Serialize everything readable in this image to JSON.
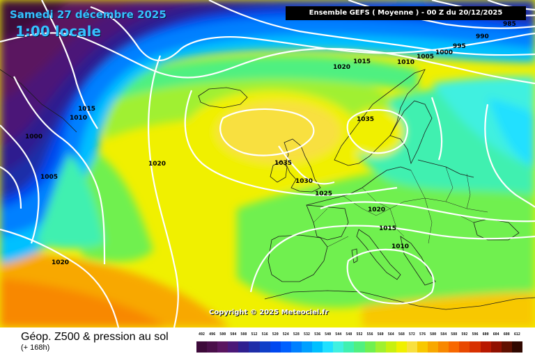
{
  "header": {
    "date": "Samedi 27 décembre 2025",
    "time": "1:00 locale",
    "run": "Ensemble GEFS  ( Moyenne )  -  00 Z du 20/12/2025"
  },
  "copyright": "Copyright © 2025 Meteociel.fr",
  "footer": {
    "title": "Géop. Z500 & pression au sol",
    "subtitle": "(+ 168h)"
  },
  "isobar_labels": [
    "985",
    "990",
    "995",
    "1000",
    "1005",
    "1010",
    "1015",
    "1020",
    "1025",
    "1030",
    "1035"
  ],
  "scale": {
    "ticks": [
      "492",
      "496",
      "500",
      "504",
      "508",
      "512",
      "516",
      "520",
      "524",
      "528",
      "532",
      "536",
      "540",
      "544",
      "548",
      "552",
      "556",
      "560",
      "564",
      "568",
      "572",
      "576",
      "580",
      "584",
      "588",
      "592",
      "596",
      "600",
      "604",
      "608",
      "612"
    ],
    "colors": [
      "#3d0a3a",
      "#4a0f4a",
      "#5a1560",
      "#4b1878",
      "#2f1f8f",
      "#1f2da8",
      "#0f3fc8",
      "#0048f0",
      "#0060ff",
      "#0080ff",
      "#00a0ff",
      "#00c0ff",
      "#20e0ff",
      "#40f0e0",
      "#40f0b0",
      "#50f080",
      "#70f050",
      "#a0f030",
      "#c8f010",
      "#f0f000",
      "#f8e040",
      "#f8c800",
      "#f8a800",
      "#f88800",
      "#f86800",
      "#e84800",
      "#d83000",
      "#b81800",
      "#901000",
      "#601000",
      "#300800"
    ]
  },
  "colors": {
    "title_blue": "#36c0ff",
    "contour": "#ffffff",
    "coast": "#1a1a1a"
  }
}
